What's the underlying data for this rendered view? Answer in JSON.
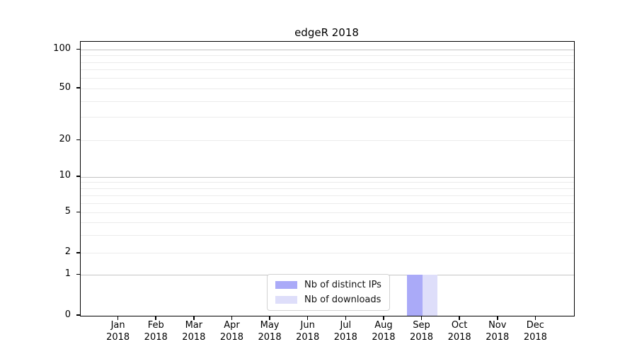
{
  "chart_data": {
    "type": "bar",
    "title": "edgeR 2018",
    "categories": [
      {
        "month": "Jan",
        "year": "2018"
      },
      {
        "month": "Feb",
        "year": "2018"
      },
      {
        "month": "Mar",
        "year": "2018"
      },
      {
        "month": "Apr",
        "year": "2018"
      },
      {
        "month": "May",
        "year": "2018"
      },
      {
        "month": "Jun",
        "year": "2018"
      },
      {
        "month": "Jul",
        "year": "2018"
      },
      {
        "month": "Aug",
        "year": "2018"
      },
      {
        "month": "Sep",
        "year": "2018"
      },
      {
        "month": "Oct",
        "year": "2018"
      },
      {
        "month": "Nov",
        "year": "2018"
      },
      {
        "month": "Dec",
        "year": "2018"
      }
    ],
    "series": [
      {
        "name": "Nb of distinct IPs",
        "color": "#aaaaf8",
        "values": [
          0,
          0,
          0,
          0,
          0,
          0,
          0,
          0,
          1,
          0,
          0,
          0
        ]
      },
      {
        "name": "Nb of downloads",
        "color": "#dedefa",
        "values": [
          0,
          0,
          0,
          0,
          0,
          0,
          0,
          0,
          1,
          0,
          0,
          0
        ]
      }
    ],
    "xlabel": "",
    "ylabel": "",
    "y_axis": {
      "scale": "log-like with linear segment to 0",
      "range": [
        0,
        100
      ],
      "ticks": [
        0,
        1,
        2,
        5,
        10,
        20,
        50,
        100
      ],
      "major_gridlines": [
        1,
        10,
        100
      ],
      "minor_gridlines": [
        2,
        3,
        4,
        5,
        6,
        7,
        8,
        9,
        20,
        30,
        40,
        50,
        60,
        70,
        80,
        90
      ]
    },
    "y_scale_anchors": {
      "0": 0,
      "1": 0.149,
      "2": 0.228,
      "5": 0.3756,
      "10": 0.5065,
      "20": 0.64,
      "50": 0.829,
      "100": 0.97
    },
    "grid": true,
    "legend": {
      "position": "lower center",
      "entries": [
        "Nb of distinct IPs",
        "Nb of downloads"
      ]
    }
  },
  "colors": {
    "background": "#ffffff",
    "axis": "#000000",
    "major_grid": "#c3c3c3",
    "minor_grid": "#ebebeb",
    "legend_border": "#d2d2d2",
    "text": "#000000"
  }
}
